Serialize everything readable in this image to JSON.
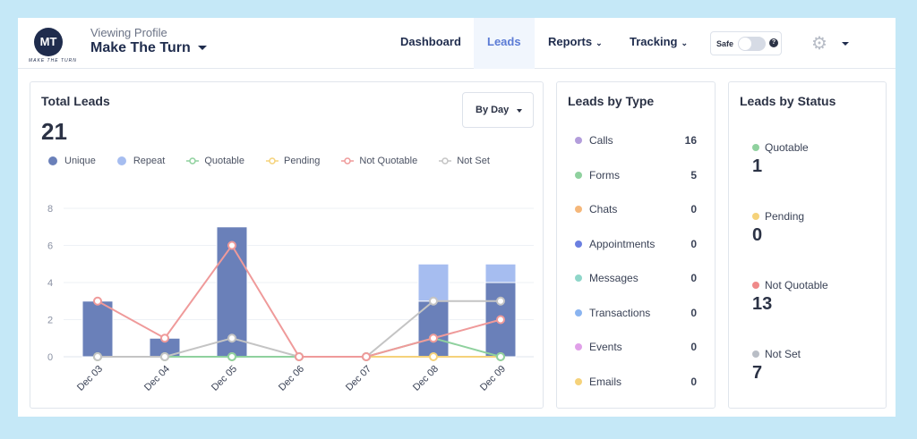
{
  "header": {
    "logo_text": "MT",
    "logo_subtext": "MAKE THE TURN",
    "viewing_label": "Viewing Profile",
    "profile_name": "Make The Turn",
    "nav": [
      {
        "label": "Dashboard"
      },
      {
        "label": "Leads",
        "active": true
      },
      {
        "label": "Reports",
        "chevron": "⌄"
      },
      {
        "label": "Tracking",
        "chevron": "⌄"
      }
    ],
    "safe_label": "Safe",
    "safe_on": false,
    "help_icon": "?",
    "gear_icon": "⚙"
  },
  "total_leads": {
    "title": "Total Leads",
    "value": "21",
    "range_select": "By Day",
    "legend": [
      {
        "name": "Unique",
        "color": "#6a80b9",
        "style": "dot"
      },
      {
        "name": "Repeat",
        "color": "#a6bdf0",
        "style": "dot"
      },
      {
        "name": "Quotable",
        "color": "#8fd19e",
        "style": "line"
      },
      {
        "name": "Pending",
        "color": "#f5d27a",
        "style": "line"
      },
      {
        "name": "Not Quotable",
        "color": "#ef9a9a",
        "style": "line"
      },
      {
        "name": "Not Set",
        "color": "#c4c4c4",
        "style": "line"
      }
    ]
  },
  "chart_data": {
    "type": "bar",
    "stacked": true,
    "categories": [
      "Dec 03",
      "Dec 04",
      "Dec 05",
      "Dec 06",
      "Dec 07",
      "Dec 08",
      "Dec 09"
    ],
    "yticks": [
      "0",
      "2",
      "4",
      "6",
      "8"
    ],
    "ylim": [
      0,
      8
    ],
    "grid": true,
    "bar_series": [
      {
        "name": "Unique",
        "color": "#6a80b9",
        "values": [
          3,
          1,
          7,
          0,
          0,
          3,
          4
        ]
      },
      {
        "name": "Repeat",
        "color": "#a6bdf0",
        "values": [
          0,
          0,
          0,
          0,
          0,
          2,
          1
        ]
      }
    ],
    "line_series": [
      {
        "name": "Pending",
        "color": "#f5d27a",
        "values": [
          0,
          0,
          0,
          0,
          0,
          0,
          0
        ]
      },
      {
        "name": "Quotable",
        "color": "#8fd19e",
        "values": [
          0,
          0,
          0,
          0,
          0,
          1,
          0
        ]
      },
      {
        "name": "Not Set",
        "color": "#c4c4c4",
        "values": [
          0,
          0,
          1,
          0,
          0,
          3,
          3
        ]
      },
      {
        "name": "Not Quotable",
        "color": "#ef9a9a",
        "values": [
          3,
          1,
          6,
          0,
          0,
          1,
          2
        ]
      }
    ]
  },
  "leads_by_type": {
    "title": "Leads by Type",
    "items": [
      {
        "label": "Calls",
        "value": "16",
        "color": "#b39ddb"
      },
      {
        "label": "Forms",
        "value": "5",
        "color": "#8fd19e"
      },
      {
        "label": "Chats",
        "value": "0",
        "color": "#f5b77a"
      },
      {
        "label": "Appointments",
        "value": "0",
        "color": "#6b7fe0"
      },
      {
        "label": "Messages",
        "value": "0",
        "color": "#8fd6c9"
      },
      {
        "label": "Transactions",
        "value": "0",
        "color": "#8ab4f0"
      },
      {
        "label": "Events",
        "value": "0",
        "color": "#e0a0e8"
      },
      {
        "label": "Emails",
        "value": "0",
        "color": "#f5d27a"
      }
    ]
  },
  "leads_by_status": {
    "title": "Leads by Status",
    "items": [
      {
        "label": "Quotable",
        "value": "1",
        "color": "#8fd19e"
      },
      {
        "label": "Pending",
        "value": "0",
        "color": "#f5d27a"
      },
      {
        "label": "Not Quotable",
        "value": "13",
        "color": "#ef8a8a"
      },
      {
        "label": "Not Set",
        "value": "7",
        "color": "#b9bec6"
      }
    ]
  }
}
